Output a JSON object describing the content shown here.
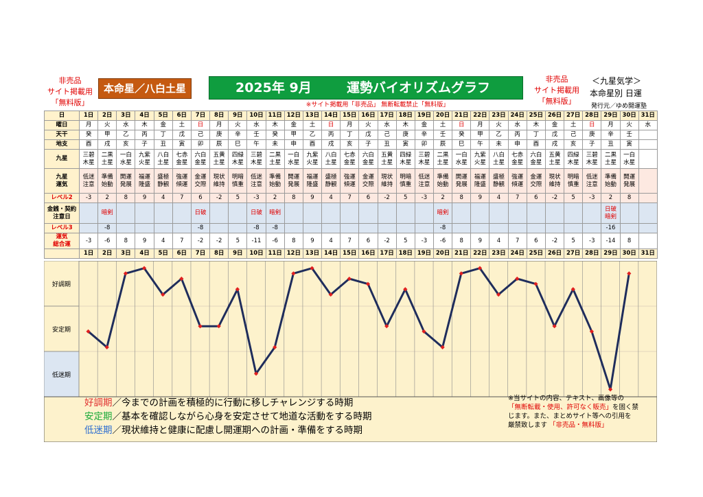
{
  "header": {
    "left_badge": [
      "非売品",
      "サイト掲載用",
      "「無料版」"
    ],
    "honmei": "本命星／八白土星",
    "title_year": "2025年 9月",
    "title_main": "運勢バイオリズムグラフ",
    "right_badge": [
      "非売品",
      "サイト掲載用",
      "「無料版」"
    ],
    "right_title": "＜九星気学＞",
    "right_subtitle": "本命星別 日運",
    "publisher": "発行元／ゆめ開運塾",
    "notice": "※サイト掲載用「非売品」 無断転載禁止「無料版」"
  },
  "table": {
    "row_labels": {
      "day": "日",
      "weekday": "曜日",
      "tenkan": "天干",
      "chishi": "地支",
      "kyusei": "九星",
      "unki": "九星運気",
      "level2": "レベル2",
      "money": "金銭・契約注意日",
      "level3": "レベル3",
      "total": "運気総合運"
    },
    "days": [
      "1日",
      "2日",
      "3日",
      "4日",
      "5日",
      "6日",
      "7日",
      "8日",
      "9日",
      "10日",
      "11日",
      "12日",
      "13日",
      "14日",
      "15日",
      "16日",
      "17日",
      "18日",
      "19日",
      "20日",
      "21日",
      "22日",
      "23日",
      "24日",
      "25日",
      "26日",
      "27日",
      "28日",
      "29日",
      "30日",
      "31日"
    ],
    "weekdays": [
      "月",
      "火",
      "水",
      "木",
      "金",
      "土",
      "日",
      "月",
      "火",
      "水",
      "木",
      "金",
      "土",
      "日",
      "月",
      "火",
      "水",
      "木",
      "金",
      "土",
      "日",
      "月",
      "火",
      "水",
      "木",
      "金",
      "土",
      "日",
      "月",
      "火",
      "水"
    ],
    "tenkan": [
      "癸",
      "甲",
      "乙",
      "丙",
      "丁",
      "戊",
      "己",
      "庚",
      "辛",
      "壬",
      "癸",
      "甲",
      "乙",
      "丙",
      "丁",
      "戊",
      "己",
      "庚",
      "辛",
      "壬",
      "癸",
      "甲",
      "乙",
      "丙",
      "丁",
      "戊",
      "己",
      "庚",
      "辛",
      "壬",
      ""
    ],
    "chishi": [
      "酉",
      "戌",
      "亥",
      "子",
      "丑",
      "寅",
      "卯",
      "辰",
      "巳",
      "午",
      "未",
      "申",
      "酉",
      "戌",
      "亥",
      "子",
      "丑",
      "寅",
      "卯",
      "辰",
      "巳",
      "午",
      "未",
      "申",
      "酉",
      "戌",
      "亥",
      "子",
      "丑",
      "寅",
      ""
    ],
    "kyusei": [
      "三碧木星",
      "二黒土星",
      "一白水星",
      "九紫火星",
      "八白土星",
      "七赤金星",
      "六白金星",
      "五黄土星",
      "四緑木星",
      "三碧木星",
      "二黒土星",
      "一白水星",
      "九紫火星",
      "八白土星",
      "七赤金星",
      "六白金星",
      "五黄土星",
      "四緑木星",
      "三碧木星",
      "二黒土星",
      "一白水星",
      "九紫火星",
      "八白土星",
      "七赤金星",
      "六白金星",
      "五黄土星",
      "四緑木星",
      "三碧木星",
      "二黒土星",
      "一白水星",
      ""
    ],
    "unki": [
      "低迷注意",
      "準備始動",
      "開運発展",
      "福運隆盛",
      "盛極静観",
      "強運傾運",
      "金運交際",
      "現状維持",
      "明暗慎重",
      "低迷注意",
      "準備始動",
      "開運発展",
      "福運隆盛",
      "盛極静観",
      "強運傾運",
      "金運交際",
      "現状維持",
      "明暗慎重",
      "低迷注意",
      "準備始動",
      "開運発展",
      "福運隆盛",
      "盛極静観",
      "強運傾運",
      "金運交際",
      "現状維持",
      "明暗慎重",
      "低迷注意",
      "準備始動",
      "開運発展",
      ""
    ],
    "level2": [
      "-3",
      "2",
      "8",
      "9",
      "4",
      "7",
      "6",
      "-2",
      "5",
      "-3",
      "2",
      "8",
      "9",
      "4",
      "7",
      "6",
      "-2",
      "5",
      "-3",
      "2",
      "8",
      "9",
      "4",
      "7",
      "6",
      "-2",
      "5",
      "-3",
      "2",
      "8",
      ""
    ],
    "money": [
      "",
      "暗剣",
      "",
      "",
      "",
      "",
      "日破",
      "",
      "",
      "日破",
      "暗剣",
      "",
      "",
      "",
      "",
      "",
      "",
      "",
      "",
      "暗剣",
      "",
      "",
      "",
      "",
      "",
      "",
      "",
      "",
      "日破暗剣",
      "",
      ""
    ],
    "level3": [
      "",
      "-8",
      "",
      "",
      "",
      "",
      "-8",
      "",
      "",
      "-8",
      "-8",
      "",
      "",
      "",
      "",
      "",
      "",
      "",
      "",
      "-8",
      "",
      "",
      "",
      "",
      "",
      "",
      "",
      "",
      "-16",
      "",
      ""
    ],
    "total": [
      "-3",
      "-6",
      "8",
      "9",
      "4",
      "7",
      "-2",
      "-2",
      "5",
      "-11",
      "-6",
      "8",
      "9",
      "4",
      "7",
      "6",
      "-2",
      "5",
      "-3",
      "-6",
      "8",
      "9",
      "4",
      "7",
      "6",
      "-2",
      "5",
      "-3",
      "-14",
      "8",
      ""
    ]
  },
  "chart_data": {
    "type": "line",
    "x": [
      1,
      2,
      3,
      4,
      5,
      6,
      7,
      8,
      9,
      10,
      11,
      12,
      13,
      14,
      15,
      16,
      17,
      18,
      19,
      20,
      21,
      22,
      23,
      24,
      25,
      26,
      27,
      28,
      29,
      30
    ],
    "series": [
      {
        "values": [
          -3,
          -6,
          8,
          9,
          4,
          7,
          -2,
          -2,
          5,
          -11,
          -6,
          8,
          9,
          4,
          7,
          6,
          -2,
          5,
          -3,
          -6,
          8,
          9,
          4,
          7,
          6,
          -2,
          5,
          -3,
          -14,
          8
        ]
      }
    ],
    "zones": [
      "好調期",
      "安定期",
      "低迷期"
    ],
    "ylim": [
      -15,
      10
    ],
    "colors": {
      "line": "#1f2d5c",
      "marker": "#e02020",
      "bg_good": "#fdf2cc",
      "bg_stable": "#fdf2cc",
      "bg_low": "#dce6f2"
    }
  },
  "legend": [
    {
      "term": "好調期",
      "text": "／今までの計画を積極的に行動に移しチャレンジする時期",
      "color": "#e03030"
    },
    {
      "term": "安定期",
      "text": "／基本を確認しながら心身を安定させて地道な活動をする時期",
      "color": "#1aaa3a"
    },
    {
      "term": "低迷期",
      "text": "／現状維持と健康に配慮し開運期への計画・準備をする時期",
      "color": "#2f6fd0"
    }
  ],
  "notice_box": {
    "line1": "※当サイトの内容、テキスト、画像等の",
    "line2_red": "「無断転載・使用、許可なく販売」",
    "line2_tail": "を固く禁",
    "line3": "じます。また、まとめサイト等への引用を",
    "line4": "厳禁致します",
    "line4_red": "「非売品・無料版」"
  }
}
